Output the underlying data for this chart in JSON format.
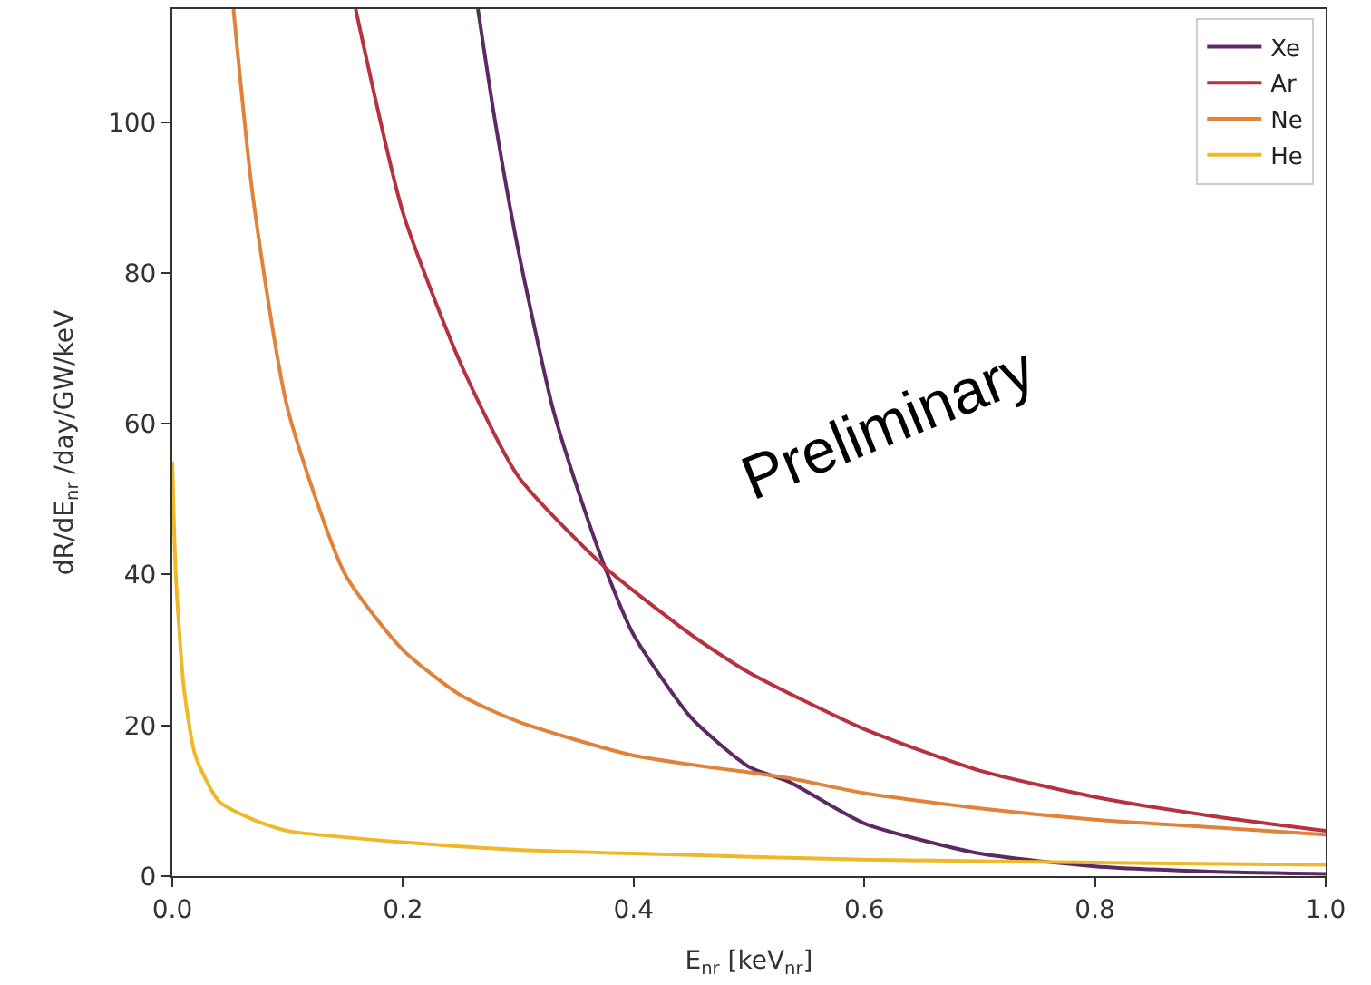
{
  "chart_data": {
    "type": "line",
    "xlabel": "E$_{nr}$ [keV$_{nr}$]",
    "ylabel": "dR/dE$_{nr}$ /day/GW/keV",
    "annotations": [
      "Preliminary"
    ],
    "xlim": [
      0,
      1
    ],
    "ylim": [
      0,
      115
    ],
    "xticks": [
      {
        "value": 0,
        "label": "0.0"
      },
      {
        "value": 0.2,
        "label": "0.2"
      },
      {
        "value": 0.4,
        "label": "0.4"
      },
      {
        "value": 0.6,
        "label": "0.6"
      },
      {
        "value": 0.8,
        "label": "0.8"
      },
      {
        "value": 1,
        "label": "1.0"
      }
    ],
    "yticks": [
      0,
      20,
      40,
      60,
      80,
      100
    ],
    "legend": "top right",
    "marker": "none",
    "line_style": "solid",
    "series": [
      {
        "name": "Xe",
        "color": "#5b2a63",
        "x": [
          0.265,
          0.28,
          0.3,
          0.33,
          0.35,
          0.375,
          0.4,
          0.45,
          0.5,
          0.535,
          0.6,
          0.7,
          0.8,
          0.9,
          1.0
        ],
        "values": [
          115,
          100,
          83,
          62,
          52,
          41,
          32,
          21,
          14.5,
          12.5,
          7,
          3,
          1.3,
          0.6,
          0.3
        ]
      },
      {
        "name": "Ar",
        "color": "#b5323e",
        "x": [
          0.159,
          0.2,
          0.25,
          0.3,
          0.375,
          0.45,
          0.5,
          0.6,
          0.7,
          0.8,
          0.9,
          1.0
        ],
        "values": [
          115,
          88,
          68,
          53,
          41,
          32,
          27,
          19.5,
          14,
          10.5,
          8,
          6
        ]
      },
      {
        "name": "Ne",
        "color": "#e0823a",
        "x": [
          0.053,
          0.07,
          0.1,
          0.15,
          0.2,
          0.25,
          0.3,
          0.4,
          0.535,
          0.6,
          0.7,
          0.8,
          0.9,
          1.0
        ],
        "values": [
          115,
          90,
          62,
          40,
          30,
          24,
          20.5,
          16,
          13,
          11,
          9,
          7.5,
          6.5,
          5.5
        ]
      },
      {
        "name": "He",
        "color": "#f0b828",
        "x": [
          0,
          0.003,
          0.01,
          0.02,
          0.04,
          0.07,
          0.1,
          0.2,
          0.3,
          0.4,
          0.6,
          0.8,
          1.0
        ],
        "values": [
          55,
          40,
          25,
          16,
          10,
          7.5,
          6,
          4.5,
          3.5,
          3,
          2.2,
          1.8,
          1.5
        ]
      }
    ]
  }
}
